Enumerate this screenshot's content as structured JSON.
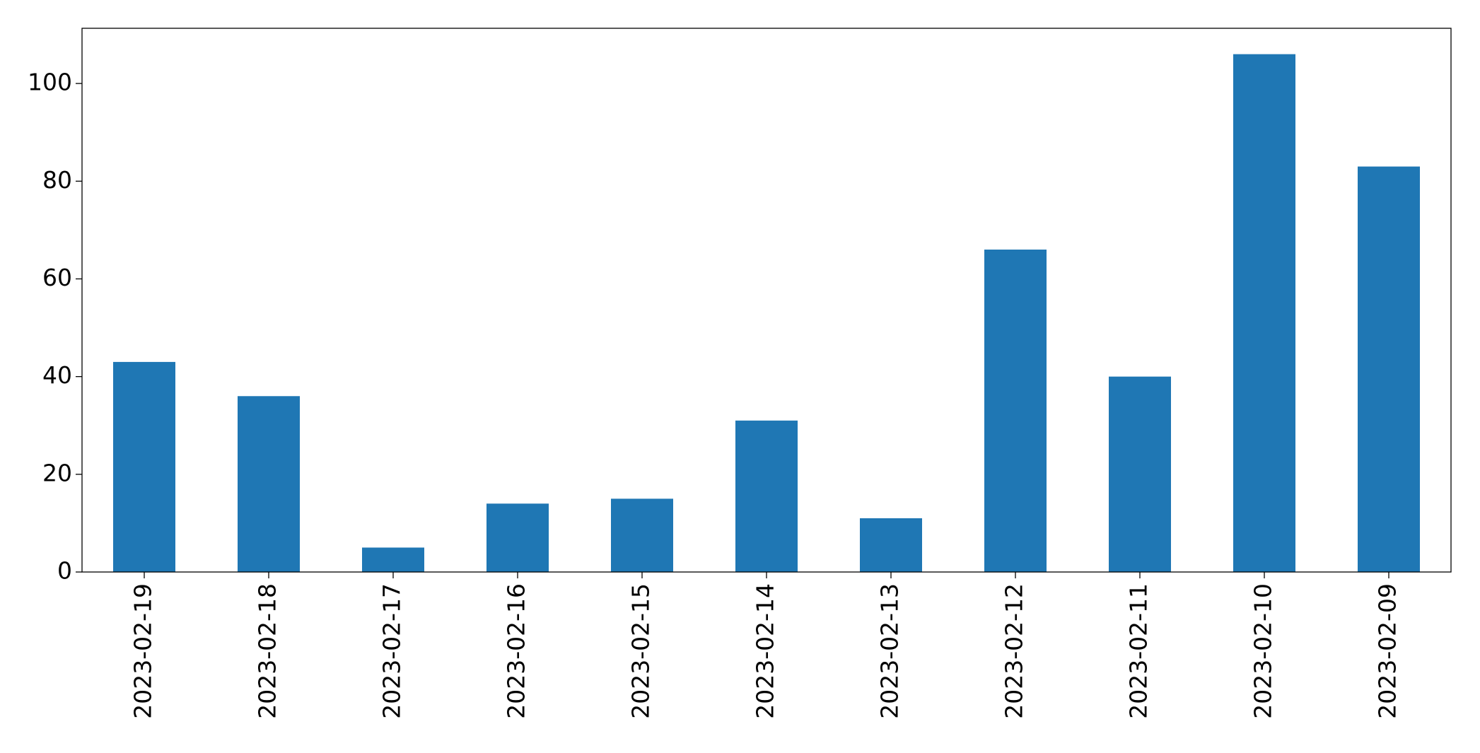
{
  "chart_data": {
    "type": "bar",
    "categories": [
      "2023-02-19",
      "2023-02-18",
      "2023-02-17",
      "2023-02-16",
      "2023-02-15",
      "2023-02-14",
      "2023-02-13",
      "2023-02-12",
      "2023-02-11",
      "2023-02-10",
      "2023-02-09"
    ],
    "values": [
      43,
      36,
      5,
      14,
      15,
      31,
      11,
      66,
      40,
      106,
      83
    ],
    "color": "#1f77b4",
    "ylim": [
      0,
      111.3
    ],
    "yticks": [
      0,
      20,
      40,
      60,
      80,
      100
    ],
    "grid": false
  }
}
